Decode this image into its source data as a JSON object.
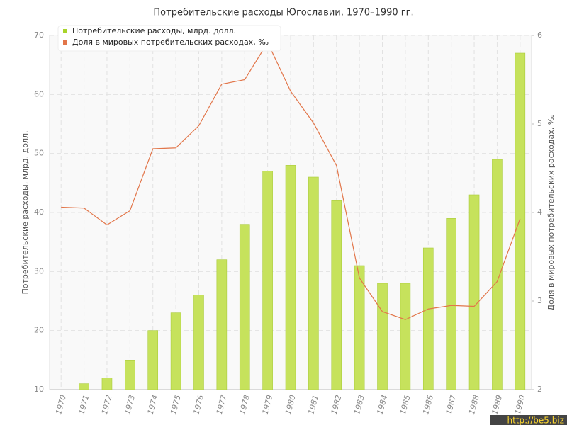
{
  "chart_data": {
    "type": "bar_line",
    "title": "Потребительские расходы Югославии, 1970–1990 гг.",
    "y_label": "Потребительские расходы, млрд. долл.",
    "y2_label": "Доля в мировых потребительских расходах, ‰",
    "watermark": "http://be5.biz",
    "categories": [
      "1970",
      "1971",
      "1972",
      "1973",
      "1974",
      "1975",
      "1976",
      "1977",
      "1978",
      "1979",
      "1980",
      "1981",
      "1982",
      "1983",
      "1984",
      "1985",
      "1986",
      "1987",
      "1988",
      "1989",
      "1990"
    ],
    "series": [
      {
        "name": "Потребительские расходы, млрд. долл.",
        "type": "bar",
        "color": "#c6e25c",
        "values": [
          10,
          11,
          12,
          15,
          20,
          23,
          26,
          32,
          38,
          47,
          48,
          46,
          42,
          31,
          28,
          28,
          34,
          39,
          43,
          49,
          67
        ]
      },
      {
        "name": "Доля в мировых потребительских расходах, ‰",
        "type": "line",
        "axis": "y2",
        "color": "#e2764a",
        "values": [
          4.06,
          4.05,
          3.86,
          4.02,
          4.72,
          4.73,
          4.98,
          5.45,
          5.5,
          5.92,
          5.37,
          5.01,
          4.53,
          3.26,
          2.88,
          2.79,
          2.91,
          2.95,
          2.94,
          3.22,
          3.93
        ]
      }
    ],
    "ylim": [
      10,
      70
    ],
    "yticks": [
      10,
      20,
      30,
      40,
      50,
      60,
      70
    ],
    "y2lim": [
      2,
      6
    ],
    "y2ticks": [
      2,
      3,
      4,
      5,
      6
    ],
    "grid": true,
    "legend": "top-left"
  }
}
